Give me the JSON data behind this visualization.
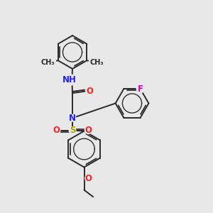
{
  "bg_color": "#e8e8e8",
  "bond_color": "#2a2a2a",
  "bond_width": 1.4,
  "atom_colors": {
    "N": "#2020ff",
    "O": "#ff2020",
    "F": "#cc00cc",
    "S": "#aaaa00",
    "C": "#2a2a2a"
  },
  "font_size": 8.5,
  "figsize": [
    3.0,
    3.0
  ],
  "dpi": 100,
  "xlim": [
    0,
    10
  ],
  "ylim": [
    0,
    10
  ]
}
